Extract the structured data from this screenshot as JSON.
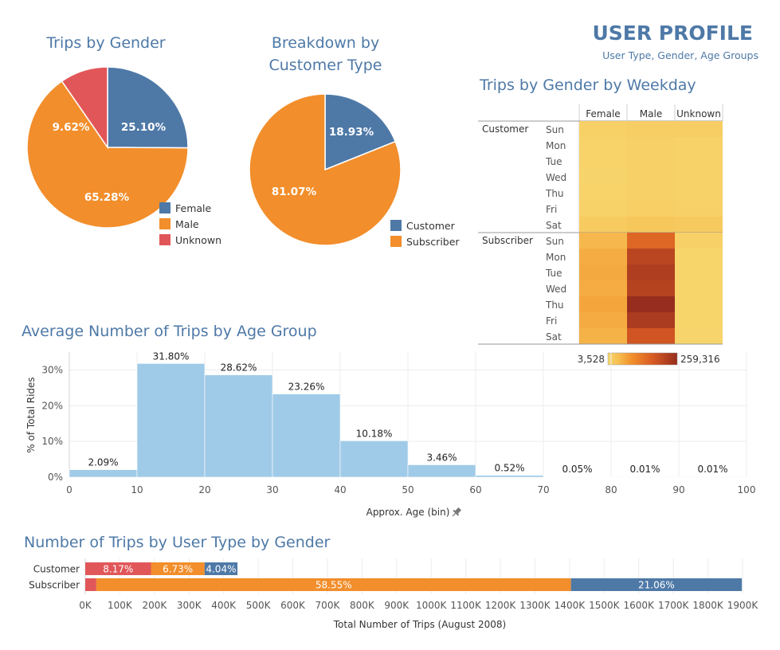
{
  "header": {
    "title": "USER PROFILE",
    "subtitle": "User Type, Gender, Age Groups"
  },
  "colors": {
    "female": "#4e79a7",
    "male": "#f28e2b",
    "unknown": "#e15759",
    "age_bar": "#a0cbe8",
    "title": "#4e79a7"
  },
  "chart_data": [
    {
      "id": "gender-pie",
      "type": "pie",
      "title": "Trips by Gender",
      "categories": [
        "Female",
        "Male",
        "Unknown"
      ],
      "values": [
        25.1,
        65.28,
        9.62
      ],
      "labels": [
        "25.10%",
        "65.28%",
        "9.62%"
      ],
      "legend": "bottom-right"
    },
    {
      "id": "customer-pie",
      "type": "pie",
      "title": "Breakdown by Customer Type",
      "title_lines": [
        "Breakdown by",
        "Customer Type"
      ],
      "categories": [
        "Customer",
        "Subscriber"
      ],
      "values": [
        18.93,
        81.07
      ],
      "labels": [
        "18.93%",
        "81.07%"
      ],
      "legend": "bottom-right"
    },
    {
      "id": "weekday-heatmap",
      "type": "heatmap",
      "title": "Trips by Gender by Weekday",
      "columns": [
        "Female",
        "Male",
        "Unknown"
      ],
      "groups": [
        {
          "name": "Customer",
          "rows": [
            "Sun",
            "Mon",
            "Tue",
            "Wed",
            "Thu",
            "Fri",
            "Sat"
          ],
          "values": [
            [
              14000,
              18000,
              17000
            ],
            [
              10000,
              13000,
              11000
            ],
            [
              9000,
              12000,
              11000
            ],
            [
              8000,
              12000,
              11000
            ],
            [
              9000,
              12000,
              11000
            ],
            [
              11000,
              16000,
              13000
            ],
            [
              22000,
              28000,
              24000
            ]
          ]
        },
        {
          "name": "Subscriber",
          "rows": [
            "Sun",
            "Mon",
            "Tue",
            "Wed",
            "Thu",
            "Fri",
            "Sat"
          ],
          "values": [
            [
              48000,
              150000,
              12000
            ],
            [
              60000,
              210000,
              7000
            ],
            [
              64000,
              225000,
              7000
            ],
            [
              60000,
              215000,
              7000
            ],
            [
              68000,
              259316,
              7000
            ],
            [
              62000,
              230000,
              7000
            ],
            [
              55000,
              180000,
              6000
            ]
          ]
        }
      ],
      "scale": {
        "min": 3528,
        "max": 259316,
        "min_label": "3,528",
        "max_label": "259,316"
      }
    },
    {
      "id": "age-histogram",
      "type": "bar",
      "title": "Average Number of Trips by Age Group",
      "xlabel": "Approx. Age (bin)",
      "ylabel": "% of Total Rides",
      "bins": [
        0,
        10,
        20,
        30,
        40,
        50,
        60,
        70,
        80,
        90
      ],
      "bin_width": 10,
      "values": [
        2.09,
        31.8,
        28.62,
        23.26,
        10.18,
        3.46,
        0.52,
        0.05,
        0.01,
        0.01
      ],
      "labels": [
        "2.09%",
        "31.80%",
        "28.62%",
        "23.26%",
        "10.18%",
        "3.46%",
        "0.52%",
        "0.05%",
        "0.01%",
        "0.01%"
      ],
      "xlim": [
        0,
        100
      ],
      "xticks": [
        "0",
        "10",
        "20",
        "30",
        "40",
        "50",
        "60",
        "70",
        "80",
        "90",
        "100"
      ],
      "ylim": [
        0,
        35
      ],
      "yticks": [
        0,
        10,
        20,
        30
      ],
      "ytick_labels": [
        "0%",
        "10%",
        "20%",
        "30%"
      ],
      "grid": true
    },
    {
      "id": "usertype-stacked",
      "type": "bar",
      "orientation": "horizontal",
      "stacked": true,
      "title": "Number of Trips by User Type by Gender",
      "xlabel": "Total Number of Trips (August 2008)",
      "categories": [
        "Customer",
        "Subscriber"
      ],
      "series": [
        {
          "name": "Unknown",
          "values": [
            190000,
            32000
          ],
          "labels": [
            "8.17%",
            ""
          ]
        },
        {
          "name": "Male",
          "values": [
            155000,
            1372000
          ],
          "labels": [
            "6.73%",
            "58.55%"
          ]
        },
        {
          "name": "Female",
          "values": [
            95000,
            494000
          ],
          "labels": [
            "4.04%",
            "21.06%"
          ]
        }
      ],
      "xlim": [
        0,
        1900000
      ],
      "xticks": [
        "0K",
        "100K",
        "200K",
        "300K",
        "400K",
        "500K",
        "600K",
        "700K",
        "800K",
        "900K",
        "1000K",
        "1100K",
        "1200K",
        "1300K",
        "1400K",
        "1500K",
        "1600K",
        "1700K",
        "1800K",
        "1900K"
      ]
    }
  ]
}
